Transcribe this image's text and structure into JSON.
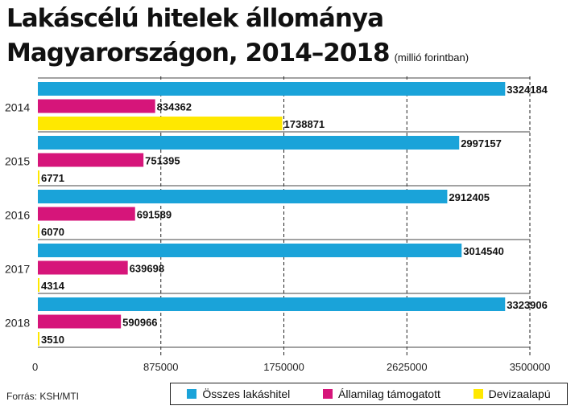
{
  "title_line1": "Lakáscélú hitelek állománya",
  "title_line2": "Magyarországon, 2014–2018",
  "unit": "(millió forintban)",
  "source": "Forrás: KSH/MTI",
  "colors": {
    "osszes": "#1aa3d9",
    "allami": "#d6157a",
    "deviza": "#ffe800"
  },
  "chart_data": {
    "type": "bar",
    "orientation": "horizontal",
    "categories": [
      "2014",
      "2015",
      "2016",
      "2017",
      "2018"
    ],
    "series": [
      {
        "name": "Összes lakáshitel",
        "color": "#1aa3d9",
        "values": [
          3324184,
          2997157,
          2912405,
          3014540,
          3323906
        ]
      },
      {
        "name": "Államilag támogatott",
        "color": "#d6157a",
        "values": [
          834362,
          751395,
          691589,
          639698,
          590966
        ]
      },
      {
        "name": "Devizaalapú",
        "color": "#ffe800",
        "values": [
          1738871,
          6771,
          6070,
          4314,
          3510
        ]
      }
    ],
    "value_labels": [
      [
        "3324184",
        "834362",
        "1738871"
      ],
      [
        "2997157",
        "751395",
        "6771"
      ],
      [
        "2912405",
        "691589",
        "6070"
      ],
      [
        "3014540",
        "639698",
        "4314"
      ],
      [
        "3323906",
        "590966",
        "3510"
      ]
    ],
    "x_ticks": [
      0,
      875000,
      1750000,
      2625000,
      3500000
    ],
    "x_tick_labels": [
      "0",
      "875000",
      "1750000",
      "2625000",
      "3500000"
    ],
    "xlim": [
      0,
      3500000
    ],
    "grid": true,
    "legend_position": "bottom-right"
  }
}
